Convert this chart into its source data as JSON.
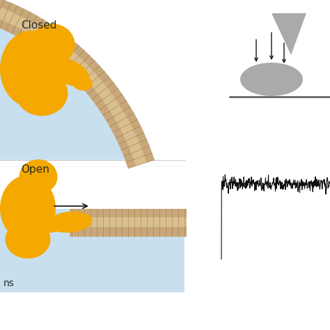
{
  "bg_color": "#ffffff",
  "closed_label": "Closed",
  "open_label": "Open",
  "label_color": "#2a2a2a",
  "orange_color": "#F5A800",
  "mem_tan": "#C8A87A",
  "mem_light": "#E5D0A0",
  "light_blue_top": "#C8DFF0",
  "light_blue_bottom": "#E8F3FA",
  "noise_color": "#111111",
  "gray_probe": "#AAAAAA",
  "line_color": "#444444"
}
